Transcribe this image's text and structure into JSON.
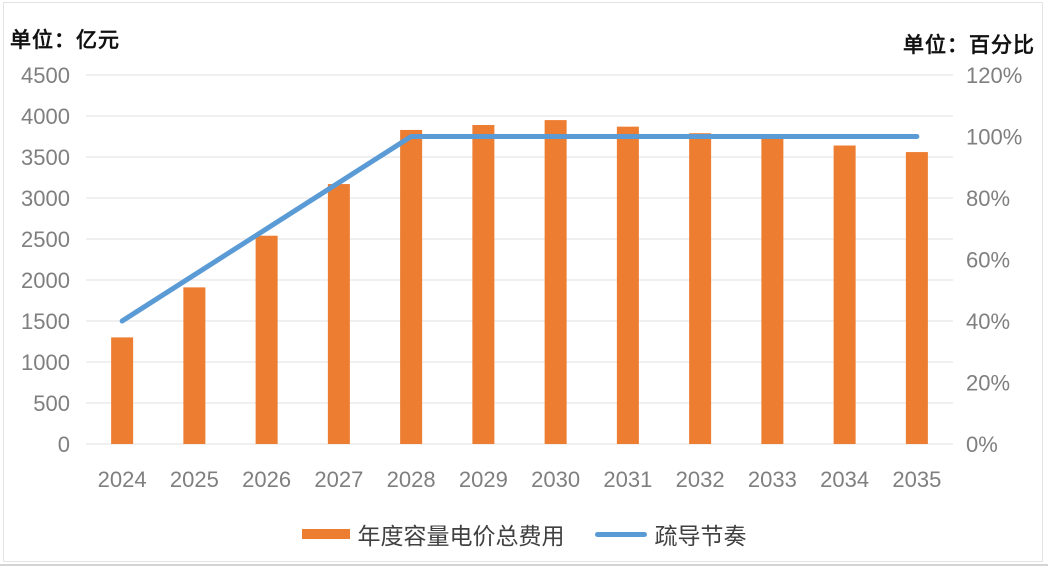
{
  "chart_data": {
    "type": "bar+line combo",
    "categories": [
      "2024",
      "2025",
      "2026",
      "2027",
      "2028",
      "2029",
      "2030",
      "2031",
      "2032",
      "2033",
      "2034",
      "2035"
    ],
    "series": [
      {
        "name": "年度容量电价总费用",
        "type": "bar",
        "axis": "left",
        "color": "#ED7D31",
        "values": [
          1300,
          1910,
          2540,
          3170,
          3830,
          3890,
          3950,
          3870,
          3790,
          3720,
          3640,
          3560
        ]
      },
      {
        "name": "疏导节奏",
        "type": "line",
        "axis": "right",
        "color": "#5B9BD5",
        "unit": "%",
        "values": [
          40,
          55,
          70,
          85,
          100,
          100,
          100,
          100,
          100,
          100,
          100,
          100
        ]
      }
    ],
    "left_axis": {
      "title": "单位：亿元",
      "min": 0,
      "max": 4500,
      "step": 500,
      "tick_labels": [
        "4500",
        "4000",
        "3500",
        "3000",
        "2500",
        "2000",
        "1500",
        "1000",
        "500",
        "0"
      ]
    },
    "right_axis": {
      "title": "单位：百分比",
      "min": 0,
      "max": 120,
      "step": 20,
      "tick_labels": [
        "120%",
        "100%",
        "80%",
        "60%",
        "40%",
        "20%",
        "0%"
      ]
    },
    "grid": true,
    "legend_position": "bottom",
    "colors": {
      "bar": "#ED7D31",
      "line": "#5B9BD5",
      "gridline": "#E2E2E2",
      "tick_label": "#7F7F7F",
      "legend_text": "#404040",
      "axis_title": "#111111",
      "card_border": "#E3E3E3",
      "bottom_divider": "#D4D4D4",
      "background": "#FFFFFF"
    }
  }
}
